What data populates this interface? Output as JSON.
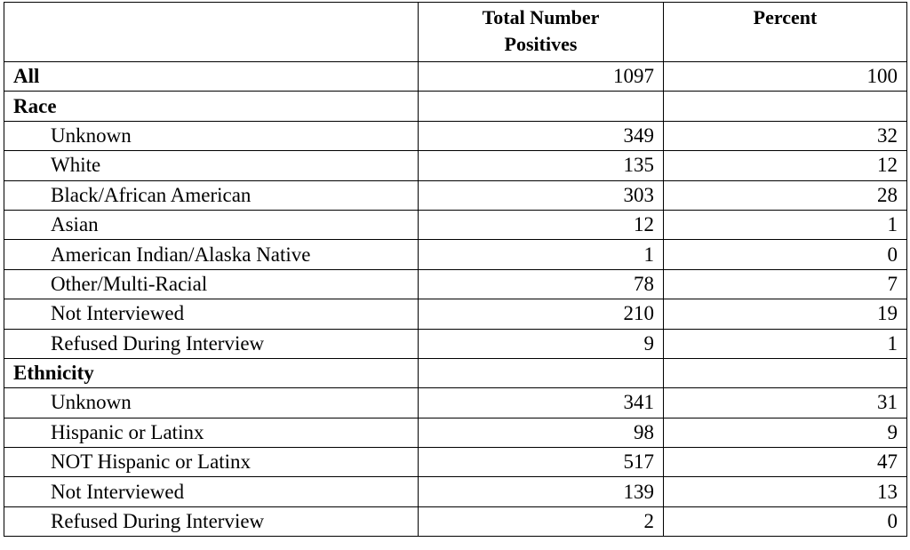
{
  "table": {
    "columns": [
      "Total Number Positives",
      "Percent"
    ],
    "rows": [
      {
        "label": "All",
        "total": 1097,
        "percent": 100
      },
      {
        "label": "Race",
        "subrows": [
          {
            "label": "Unknown",
            "total": 349,
            "percent": 32
          },
          {
            "label": "White",
            "total": 135,
            "percent": 12
          },
          {
            "label": "Black/African American",
            "total": 303,
            "percent": 28
          },
          {
            "label": "Asian",
            "total": 12,
            "percent": 1
          },
          {
            "label": "American Indian/Alaska Native",
            "total": 1,
            "percent": 0
          },
          {
            "label": "Other/Multi-Racial",
            "total": 78,
            "percent": 7
          },
          {
            "label": "Not Interviewed",
            "total": 210,
            "percent": 19
          },
          {
            "label": "Refused During Interview",
            "total": 9,
            "percent": 1
          }
        ]
      },
      {
        "label": "Ethnicity",
        "subrows": [
          {
            "label": "Unknown",
            "total": 341,
            "percent": 31
          },
          {
            "label": "Hispanic or Latinx",
            "total": 98,
            "percent": 9
          },
          {
            "label": "NOT Hispanic or Latinx",
            "total": 517,
            "percent": 47
          },
          {
            "label": "Not Interviewed",
            "total": 139,
            "percent": 13
          },
          {
            "label": "Refused During Interview",
            "total": 2,
            "percent": 0
          }
        ]
      }
    ]
  }
}
